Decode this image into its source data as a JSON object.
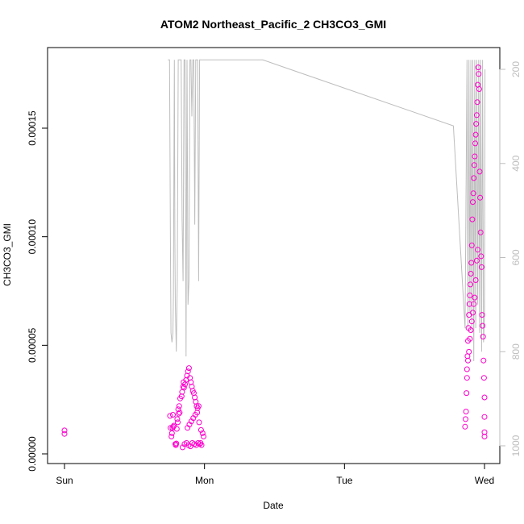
{
  "chart_data": {
    "type": "scatter",
    "title": "ATOM2 Northeast_Pacific_2 CH3CO3_GMI",
    "xlabel": "Date",
    "ylabel": "CH3CO3_GMI",
    "x_ticks": [
      "Sun",
      "Mon",
      "Tue",
      "Wed"
    ],
    "y_ticks": [
      "0.00000",
      "0.00005",
      "0.00010",
      "0.00015"
    ],
    "y_tick_values": [
      0,
      5e-05,
      0.0001,
      0.00015
    ],
    "y2_ticks": [
      "200",
      "400",
      "600",
      "800",
      "1000"
    ],
    "y2_tick_values": [
      200,
      400,
      600,
      800,
      1000
    ],
    "xlim": [
      "Sun 00:00",
      "Wed 03:00"
    ],
    "ylim": [
      0,
      0.000188
    ],
    "y2lim": [
      1030,
      180
    ],
    "series": [
      {
        "kind": "points",
        "color": "#ff00cc",
        "x": [
          "Sun 00:00",
          "Sun 00:00",
          "Sun 18:05",
          "Sun 18:10",
          "Sun 18:20",
          "Sun 18:25",
          "Sun 18:30",
          "Sun 18:35",
          "Sun 18:40",
          "Sun 18:45",
          "Sun 19:00",
          "Sun 19:05",
          "Sun 19:10",
          "Sun 19:15",
          "Sun 19:20",
          "Sun 19:25",
          "Sun 19:30",
          "Sun 19:35",
          "Sun 19:40",
          "Sun 19:45",
          "Sun 19:50",
          "Sun 20:05",
          "Sun 20:10",
          "Sun 20:20",
          "Sun 20:25",
          "Sun 20:30",
          "Sun 20:40",
          "Sun 20:50",
          "Sun 21:00",
          "Sun 21:10",
          "Sun 21:20",
          "Sun 21:30",
          "Sun 21:40",
          "Sun 21:50",
          "Sun 22:00",
          "Sun 22:10",
          "Sun 22:20",
          "Sun 22:30",
          "Sun 22:40",
          "Sun 22:50",
          "Sun 23:00",
          "Sun 20:15",
          "Sun 20:35",
          "Sun 20:55",
          "Sun 21:15",
          "Sun 21:35",
          "Sun 21:55",
          "Sun 22:15",
          "Sun 22:35",
          "Sun 22:55",
          "Sun 23:10",
          "Sun 23:20",
          "Sun 23:30",
          "Sun 21:05",
          "Sun 21:25",
          "Sun 21:45",
          "Sun 22:05",
          "Sun 22:25",
          "Sun 22:45",
          "Sun 23:05",
          "Sun 23:25",
          "Sun 23:40",
          "Sun 23:50",
          "Tue 20:40",
          "Tue 20:45",
          "Tue 20:50",
          "Tue 20:55",
          "Tue 21:00",
          "Tue 21:05",
          "Tue 21:10",
          "Tue 21:15",
          "Tue 21:20",
          "Tue 21:25",
          "Tue 21:30",
          "Tue 21:35",
          "Tue 21:40",
          "Tue 21:45",
          "Tue 21:50",
          "Tue 21:55",
          "Tue 22:00",
          "Tue 22:05",
          "Tue 22:10",
          "Tue 22:15",
          "Tue 22:20",
          "Tue 22:25",
          "Tue 22:30",
          "Tue 22:35",
          "Tue 22:40",
          "Tue 22:45",
          "Tue 22:50",
          "Tue 22:55",
          "Tue 21:00",
          "Tue 21:10",
          "Tue 21:20",
          "Tue 21:30",
          "Tue 21:40",
          "Tue 21:50",
          "Tue 22:00",
          "Tue 22:10",
          "Tue 22:20",
          "Tue 22:30",
          "Tue 22:40",
          "Tue 22:50",
          "Tue 23:00",
          "Tue 23:05",
          "Tue 23:10",
          "Tue 23:15",
          "Tue 23:20",
          "Tue 23:25",
          "Tue 23:30",
          "Tue 23:35",
          "Tue 23:40",
          "Tue 23:45",
          "Tue 23:50",
          "Tue 23:55",
          "Wed 00:00",
          "Wed 00:00",
          "Wed 00:00",
          "Wed 00:00"
        ],
        "y": [
          1.08e-05,
          9.2e-06,
          1.75e-05,
          1.2e-05,
          8e-06,
          9.5e-06,
          1.2e-05,
          1.8e-05,
          1.25e-05,
          1.3e-05,
          4.5e-06,
          4e-06,
          4.8e-06,
          1.15e-05,
          1.6e-05,
          1.45e-05,
          2.05e-05,
          1.85e-05,
          2.2e-05,
          1.9e-05,
          2.55e-05,
          2.65e-05,
          2.85e-05,
          3.1e-05,
          3.3e-05,
          3.05e-05,
          3.2e-05,
          3.4e-05,
          3.6e-05,
          3.8e-05,
          3.95e-05,
          3.5e-05,
          3.3e-05,
          3.1e-05,
          2.9e-05,
          2.8e-05,
          2.6e-05,
          2.4e-05,
          2.2e-05,
          2.1e-05,
          2.2e-05,
          3e-06,
          4.5e-06,
          5e-06,
          4e-06,
          3.5e-06,
          5e-06,
          4.5e-06,
          4e-06,
          5e-06,
          4.5e-06,
          5e-06,
          4e-06,
          1.2e-05,
          1.35e-05,
          1.5e-05,
          1.65e-05,
          1.8e-05,
          1.9e-05,
          1.45e-05,
          1.1e-05,
          9.5e-06,
          8e-06,
          1.25e-05,
          1.6e-05,
          1.95e-05,
          2.8e-05,
          3.5e-05,
          4.5e-05,
          5.2e-05,
          5.8e-05,
          6.4e-05,
          6.9e-05,
          7.3e-05,
          7.8e-05,
          8.3e-05,
          8.8e-05,
          9.6e-05,
          0.000108,
          0.000116,
          0.00012,
          0.000127,
          0.000133,
          0.000137,
          0.000143,
          0.000147,
          0.000152,
          0.000156,
          0.000162,
          0.00017,
          0.000178,
          3.9e-05,
          4.3e-05,
          4.7e-05,
          5.3e-05,
          5.7e-05,
          6.1e-05,
          6.5e-05,
          6.9e-05,
          7.2e-05,
          8e-05,
          8.9e-05,
          9.4e-05,
          0.000175,
          0.000168,
          0.00013,
          0.000118,
          0.000102,
          9.1e-05,
          8.6e-05,
          6.4e-05,
          5.9e-05,
          5.4e-05,
          4.3e-05,
          3.5e-05,
          2.6e-05,
          1.7e-05,
          1e-05,
          8e-06
        ]
      },
      {
        "kind": "line",
        "color": "#bdbdbd",
        "axis": "right",
        "x": [
          "Sun 17:45",
          "Sun 18:00",
          "Sun 18:10",
          "Sun 18:15",
          "Sun 18:25",
          "Sun 18:35",
          "Sun 18:40",
          "Sun 18:50",
          "Sun 18:55",
          "Sun 19:00",
          "Sun 19:10",
          "Sun 19:20",
          "Sun 19:30",
          "Sun 19:40",
          "Sun 19:50",
          "Sun 20:00",
          "Sun 20:10",
          "Sun 20:20",
          "Sun 20:30",
          "Sun 20:40",
          "Sun 20:50",
          "Sun 21:00",
          "Sun 21:10",
          "Sun 21:20",
          "Sun 21:30",
          "Sun 21:40",
          "Sun 21:50",
          "Sun 22:00",
          "Sun 22:10",
          "Sun 22:20",
          "Sun 22:30",
          "Sun 22:40",
          "Sun 22:50",
          "Sun 23:00",
          "Sun 23:10",
          "Sun 23:20",
          "Sun 23:30",
          "Sun 23:40",
          "Sun 23:50",
          "Mon 10:00",
          "Tue 18:40",
          "Tue 20:40",
          "Tue 21:00",
          "Tue 21:10",
          "Tue 21:20",
          "Tue 21:30",
          "Tue 21:40",
          "Tue 21:50",
          "Tue 22:00",
          "Tue 22:10",
          "Tue 22:20",
          "Tue 22:30",
          "Tue 22:40",
          "Tue 22:50",
          "Tue 23:00",
          "Tue 23:10",
          "Tue 23:20",
          "Tue 23:30",
          "Tue 23:40",
          "Tue 23:50",
          "Wed 00:00",
          "Wed 00:05"
        ],
        "y": [
          180,
          180,
          600,
          760,
          780,
          760,
          680,
          180,
          560,
          700,
          800,
          650,
          180,
          180,
          180,
          180,
          520,
          650,
          180,
          180,
          810,
          180,
          700,
          650,
          180,
          180,
          300,
          180,
          180,
          530,
          180,
          180,
          180,
          650,
          180,
          180,
          180,
          180,
          180,
          180,
          320,
          750,
          180,
          750,
          180,
          720,
          180,
          760,
          180,
          820,
          180,
          750,
          180,
          700,
          180,
          760,
          180,
          800,
          180,
          780,
          720,
          200
        ]
      }
    ]
  }
}
